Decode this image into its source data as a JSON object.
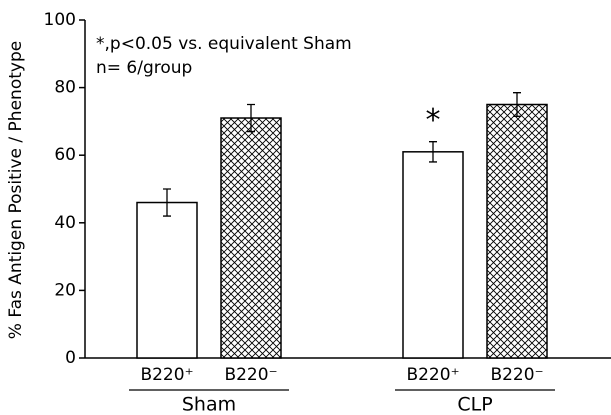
{
  "chart_data": {
    "type": "bar",
    "y_label": "% Fas Antigen Positive / Phenotype",
    "annotations": [
      "*,p<0.05 vs. equivalent Sham",
      "n= 6/group"
    ],
    "significance_marker": "*",
    "categories": [
      "Sham",
      "CLP"
    ],
    "series": [
      {
        "name": "B220⁺",
        "color": "#ffffff",
        "hatch": false,
        "values": [
          46,
          61
        ],
        "errors": [
          4,
          3
        ],
        "significant": [
          false,
          true
        ]
      },
      {
        "name": "B220⁻",
        "color": "#ffffff",
        "hatch": true,
        "values": [
          71,
          75
        ],
        "errors": [
          4,
          3.5
        ],
        "significant": [
          false,
          false
        ]
      }
    ],
    "ylim": [
      0,
      100
    ],
    "yticks": [
      0,
      20,
      40,
      60,
      80,
      100
    ],
    "grid": false
  }
}
